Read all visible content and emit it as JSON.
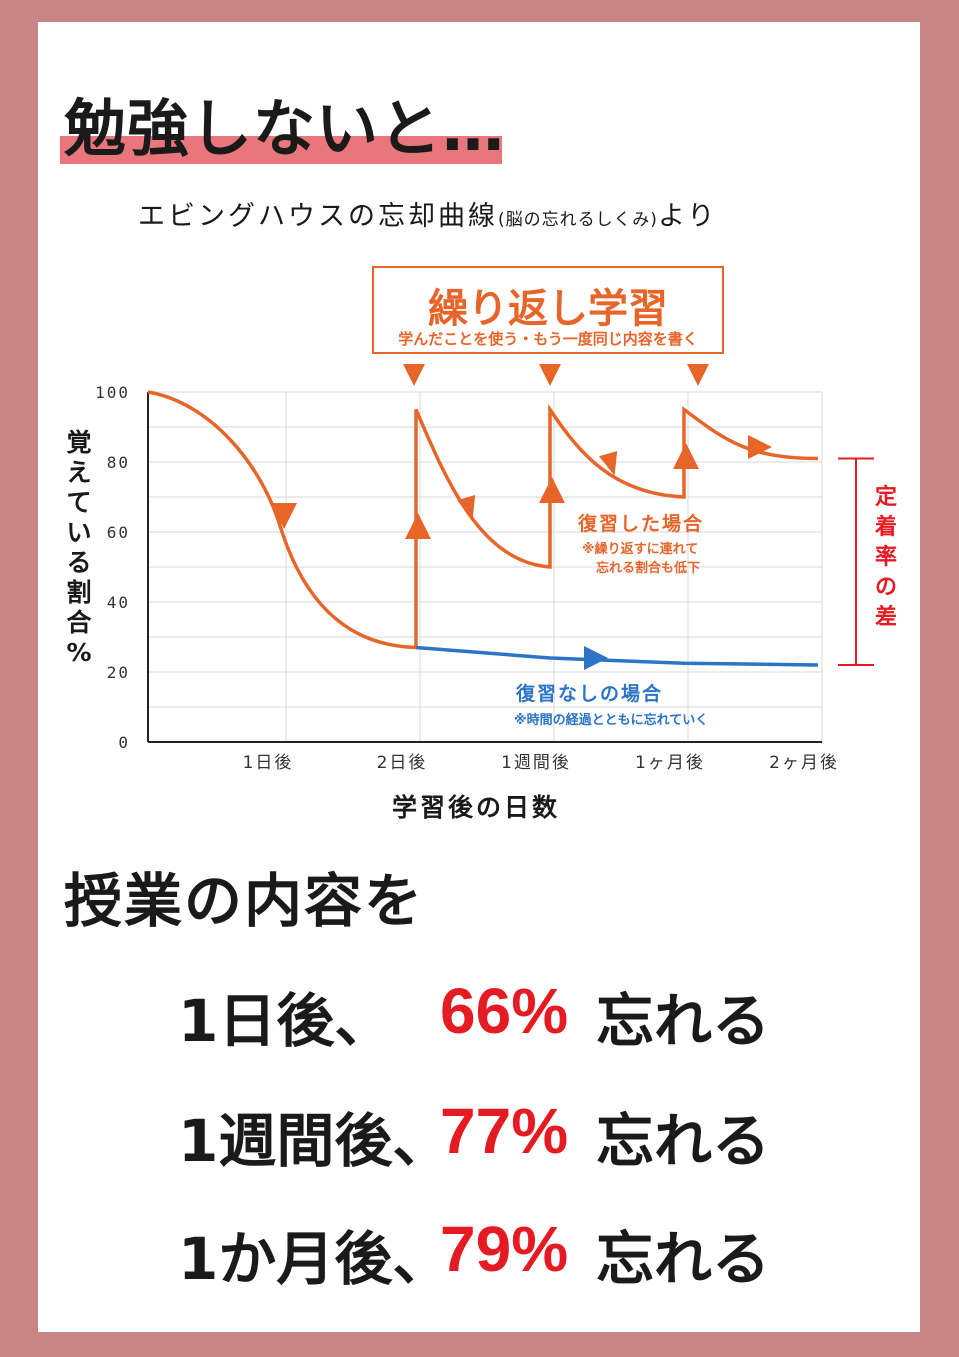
{
  "title": "勉強しないと…",
  "subtitle": {
    "main": "エビングハウスの忘却曲線",
    "note": "(脳の忘れるしくみ)",
    "suffix": "より"
  },
  "repeat_box": {
    "title": "繰り返し学習",
    "subtitle": "学んだことを使う・もう一度同じ内容を書く"
  },
  "colors": {
    "frame": "#c98585",
    "orange": "#e8652a",
    "blue": "#2b74c8",
    "red": "#e51b23",
    "title_bar": "#e8767a"
  },
  "chart_data": {
    "type": "line",
    "ylabel": "覚えている割合%",
    "xlabel": "学習後の日数",
    "ylim": [
      0,
      100
    ],
    "y_ticks": [
      "100",
      "80",
      "60",
      "40",
      "20",
      "0"
    ],
    "y_tick_values": [
      100,
      80,
      60,
      40,
      20,
      0
    ],
    "x_ticks": [
      "1日後",
      "2日後",
      "1週間後",
      "1ヶ月後",
      "2ヶ月後"
    ],
    "grid": true,
    "series": [
      {
        "name": "復習した場合",
        "note": "※繰り返すに連れて忘れる割合も低下",
        "color": "#e8652a",
        "x": [
          0,
          1,
          1.95,
          1.95,
          2,
          2,
          3,
          3,
          4,
          4,
          5
        ],
        "y": [
          100,
          60,
          27,
          27,
          27,
          95,
          50,
          95,
          70,
          95,
          81
        ]
      },
      {
        "name": "復習なしの場合",
        "note": "※時間の経過とともに忘れていく",
        "color": "#2b74c8",
        "x": [
          2,
          3,
          4,
          5
        ],
        "y": [
          27,
          24,
          22.5,
          22
        ]
      }
    ],
    "annotation": "定着率の差"
  },
  "lecture": "授業の内容を",
  "stats": [
    {
      "when": "1日後、",
      "pct": "66%",
      "forget": "忘れる"
    },
    {
      "when": "1週間後、",
      "pct": "77%",
      "forget": "忘れる"
    },
    {
      "when": "1か月後、",
      "pct": "79%",
      "forget": "忘れる"
    }
  ]
}
